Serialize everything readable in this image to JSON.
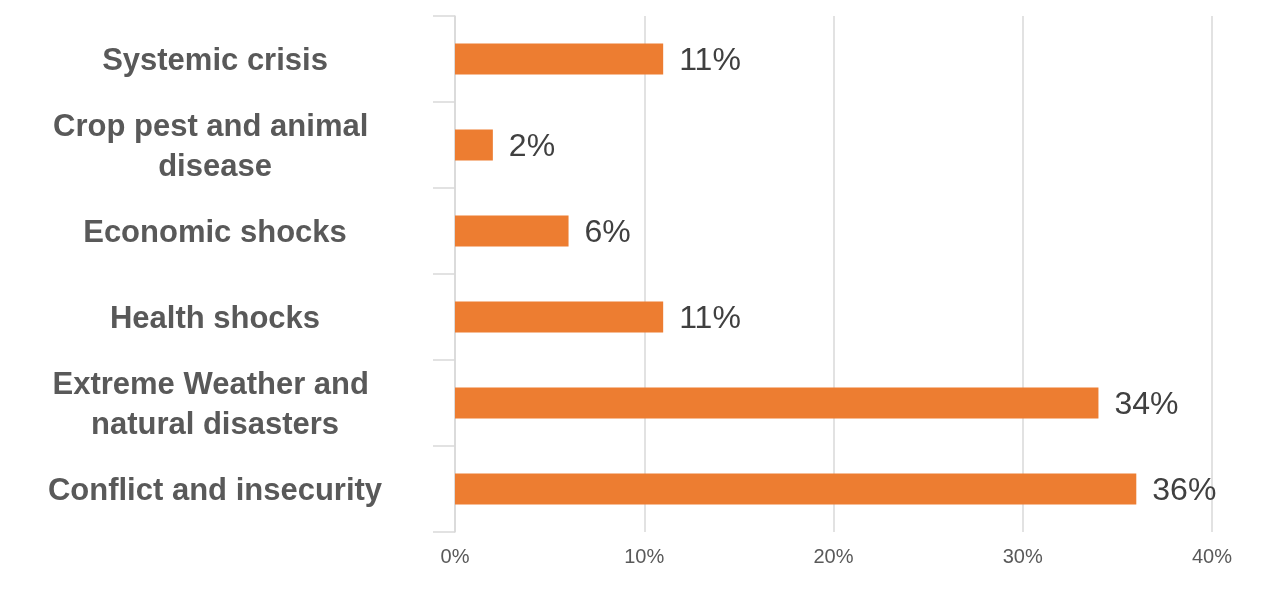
{
  "chart_data": {
    "type": "bar",
    "orientation": "horizontal",
    "categories": [
      "Systemic crisis",
      "Crop pest and animal disease",
      "Economic shocks",
      "Health shocks",
      "Extreme Weather and natural disasters",
      "Conflict and insecurity"
    ],
    "values": [
      11,
      2,
      6,
      11,
      34,
      36
    ],
    "value_labels": [
      "11%",
      "2%",
      "6%",
      "11%",
      "34%",
      "36%"
    ],
    "color": "#ed7d31",
    "xlim": [
      0,
      40
    ],
    "xticks": [
      {
        "value": 0,
        "label": "0%"
      },
      {
        "value": 10,
        "label": "10%"
      },
      {
        "value": 20,
        "label": "20%"
      },
      {
        "value": 30,
        "label": "30%"
      },
      {
        "value": 40,
        "label": "40%"
      }
    ],
    "grid": "x"
  }
}
